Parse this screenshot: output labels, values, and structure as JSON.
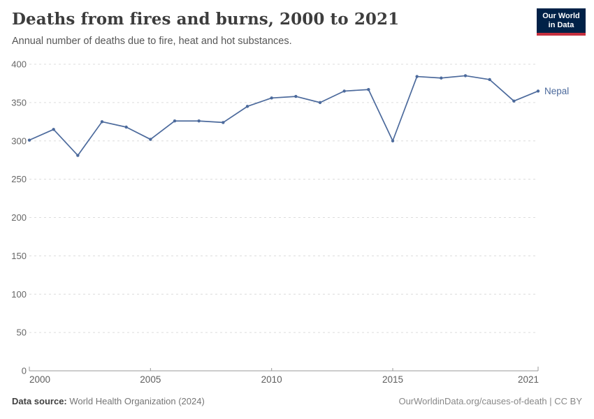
{
  "header": {
    "title": "Deaths from fires and burns, 2000 to 2021",
    "subtitle": "Annual number of deaths due to fire, heat and hot substances."
  },
  "logo": {
    "line1": "Our World",
    "line2": "in Data",
    "background_color": "#002147",
    "underline_color": "#c5303e"
  },
  "chart_data": {
    "type": "line",
    "title": "Deaths from fires and burns, 2000 to 2021",
    "xlabel": "",
    "ylabel": "",
    "xlim": [
      2000,
      2021
    ],
    "ylim": [
      0,
      400
    ],
    "grid": true,
    "legend_position": "end-of-line",
    "xticks": [
      2000,
      2005,
      2010,
      2015,
      2021
    ],
    "yticks": [
      0,
      50,
      100,
      150,
      200,
      250,
      300,
      350,
      400
    ],
    "x": [
      2000,
      2001,
      2002,
      2003,
      2004,
      2005,
      2006,
      2007,
      2008,
      2009,
      2010,
      2011,
      2012,
      2013,
      2014,
      2015,
      2016,
      2017,
      2018,
      2019,
      2020,
      2021
    ],
    "series": [
      {
        "name": "Nepal",
        "color": "#4c6a9c",
        "values": [
          301,
          315,
          281,
          325,
          318,
          302,
          326,
          326,
          324,
          345,
          356,
          358,
          350,
          365,
          367,
          300,
          384,
          382,
          385,
          380,
          352,
          365
        ]
      }
    ]
  },
  "footer": {
    "source_label": "Data source:",
    "source_value": "World Health Organization (2024)",
    "credit": "OurWorldinData.org/causes-of-death | CC BY"
  },
  "colors": {
    "title_text": "#3d3d3d",
    "subtitle_text": "#565656",
    "y_tick_label": "#666666",
    "x_tick_label": "#5e5e5e",
    "gridline": "#dcdcdc",
    "axis_line": "#999999",
    "series_line": "#4c6a9c"
  }
}
